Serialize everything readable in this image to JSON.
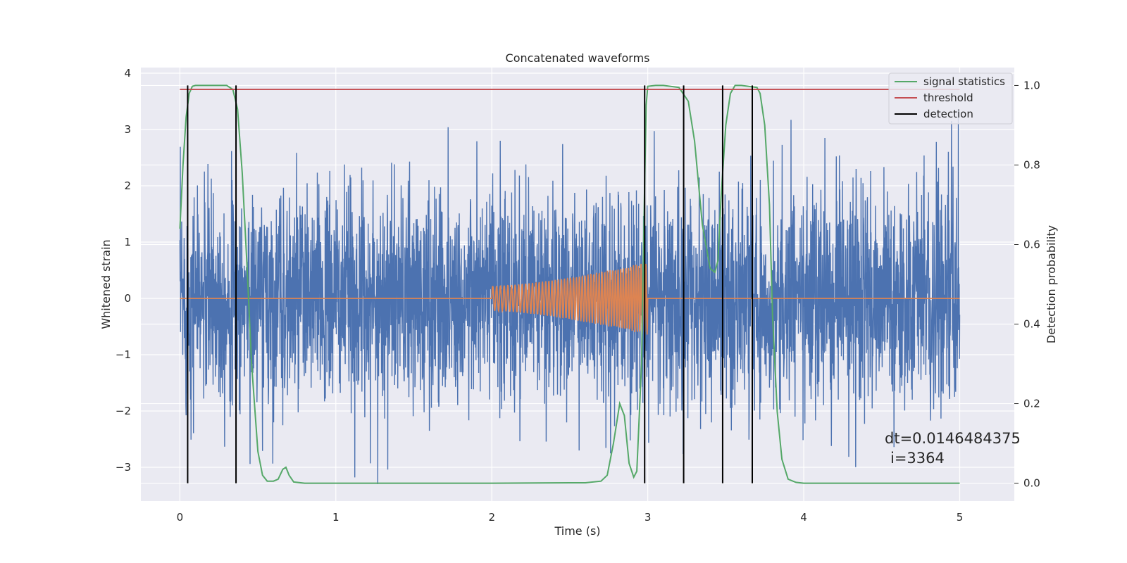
{
  "chart_data": {
    "type": "line",
    "title": "Concatenated waveforms",
    "xlabel": "Time (s)",
    "ylabel": "Whitened strain",
    "y2label": "Detection probability",
    "xlim": [
      -0.25,
      5.35
    ],
    "ylim": [
      -3.6,
      4.1
    ],
    "y2lim": [
      -0.045,
      1.045
    ],
    "x_ticks": [
      0,
      1,
      2,
      3,
      4,
      5
    ],
    "y_ticks": [
      -3,
      -2,
      -1,
      0,
      1,
      2,
      3,
      4
    ],
    "y2_ticks": [
      "0.0",
      "0.2",
      "0.4",
      "0.6",
      "0.8",
      "1.0"
    ],
    "grid": true,
    "legend_position": "top-right",
    "colors": {
      "background": "#eaeaf2",
      "strain": "#4c72b0",
      "template": "#dd8452",
      "signal": "#55a868",
      "threshold": "#c44e52",
      "detection": "#000000"
    },
    "series": [
      {
        "name": "signal statistics",
        "axis": "right",
        "x": [
          0.0,
          0.02,
          0.04,
          0.06,
          0.08,
          0.1,
          0.2,
          0.3,
          0.34,
          0.37,
          0.4,
          0.43,
          0.46,
          0.5,
          0.53,
          0.56,
          0.6,
          0.63,
          0.66,
          0.68,
          0.7,
          0.73,
          0.8,
          1.0,
          1.5,
          2.0,
          2.5,
          2.6,
          2.7,
          2.74,
          2.78,
          2.82,
          2.85,
          2.88,
          2.91,
          2.93,
          2.96,
          2.98,
          2.99,
          3.0,
          3.05,
          3.1,
          3.2,
          3.26,
          3.3,
          3.35,
          3.4,
          3.43,
          3.45,
          3.47,
          3.5,
          3.53,
          3.56,
          3.6,
          3.7,
          3.72,
          3.75,
          3.78,
          3.8,
          3.83,
          3.86,
          3.9,
          3.95,
          4.0,
          4.5,
          5.0
        ],
        "y": [
          0.64,
          0.8,
          0.92,
          0.98,
          0.998,
          1.0,
          1.0,
          1.0,
          0.99,
          0.94,
          0.78,
          0.55,
          0.3,
          0.08,
          0.02,
          0.005,
          0.005,
          0.01,
          0.035,
          0.04,
          0.02,
          0.003,
          0.0,
          0.0,
          0.0,
          0.0,
          0.001,
          0.001,
          0.005,
          0.02,
          0.1,
          0.2,
          0.17,
          0.05,
          0.015,
          0.03,
          0.3,
          0.75,
          0.95,
          0.998,
          1.0,
          1.0,
          0.995,
          0.96,
          0.86,
          0.65,
          0.54,
          0.53,
          0.56,
          0.72,
          0.9,
          0.98,
          1.0,
          1.0,
          0.995,
          0.98,
          0.9,
          0.7,
          0.42,
          0.18,
          0.06,
          0.01,
          0.002,
          0.0,
          0.0,
          0.0
        ]
      },
      {
        "name": "threshold",
        "axis": "right",
        "x": [
          0.0,
          5.0
        ],
        "y": [
          0.99,
          0.99
        ]
      },
      {
        "name": "detection",
        "axis": "right",
        "x": [
          0.05,
          0.36,
          2.98,
          3.23,
          3.48,
          3.67
        ],
        "y_from": 0.0,
        "y_to": 1.0
      }
    ],
    "annotations": [
      "dt=0.0146484375",
      "i=3364"
    ]
  }
}
